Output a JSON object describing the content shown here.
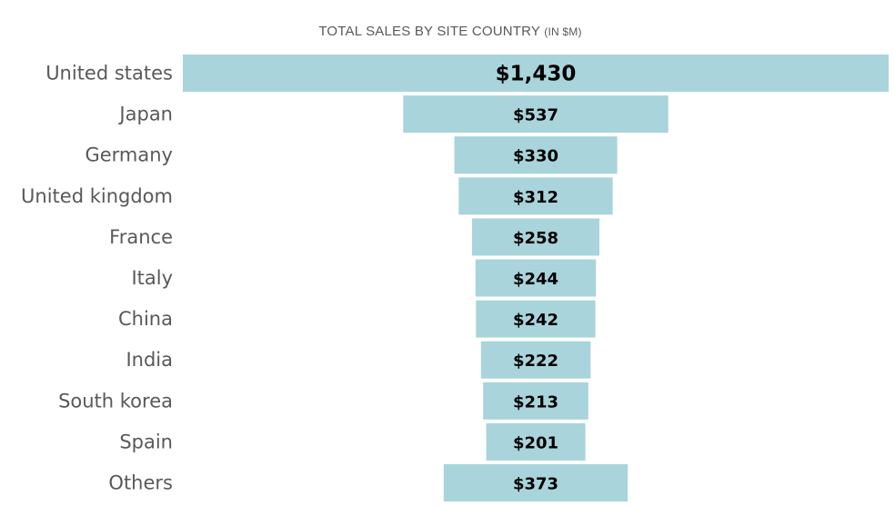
{
  "chart_data": {
    "type": "bar",
    "orientation": "horizontal-funnel",
    "title": "TOTAL SALES BY SITE COUNTRY",
    "title_unit": "(IN $M)",
    "categories": [
      "United states",
      "Japan",
      "Germany",
      "United kingdom",
      "France",
      "Italy",
      "China",
      "India",
      "South korea",
      "Spain",
      "Others"
    ],
    "values": [
      1430,
      537,
      330,
      312,
      258,
      244,
      242,
      222,
      213,
      201,
      373
    ],
    "value_labels": [
      "$1,430",
      "$537",
      "$330",
      "$312",
      "$258",
      "$244",
      "$242",
      "$222",
      "$213",
      "$201",
      "$373"
    ],
    "bar_color": "#a9d4db",
    "legend": "none",
    "grid": false
  }
}
